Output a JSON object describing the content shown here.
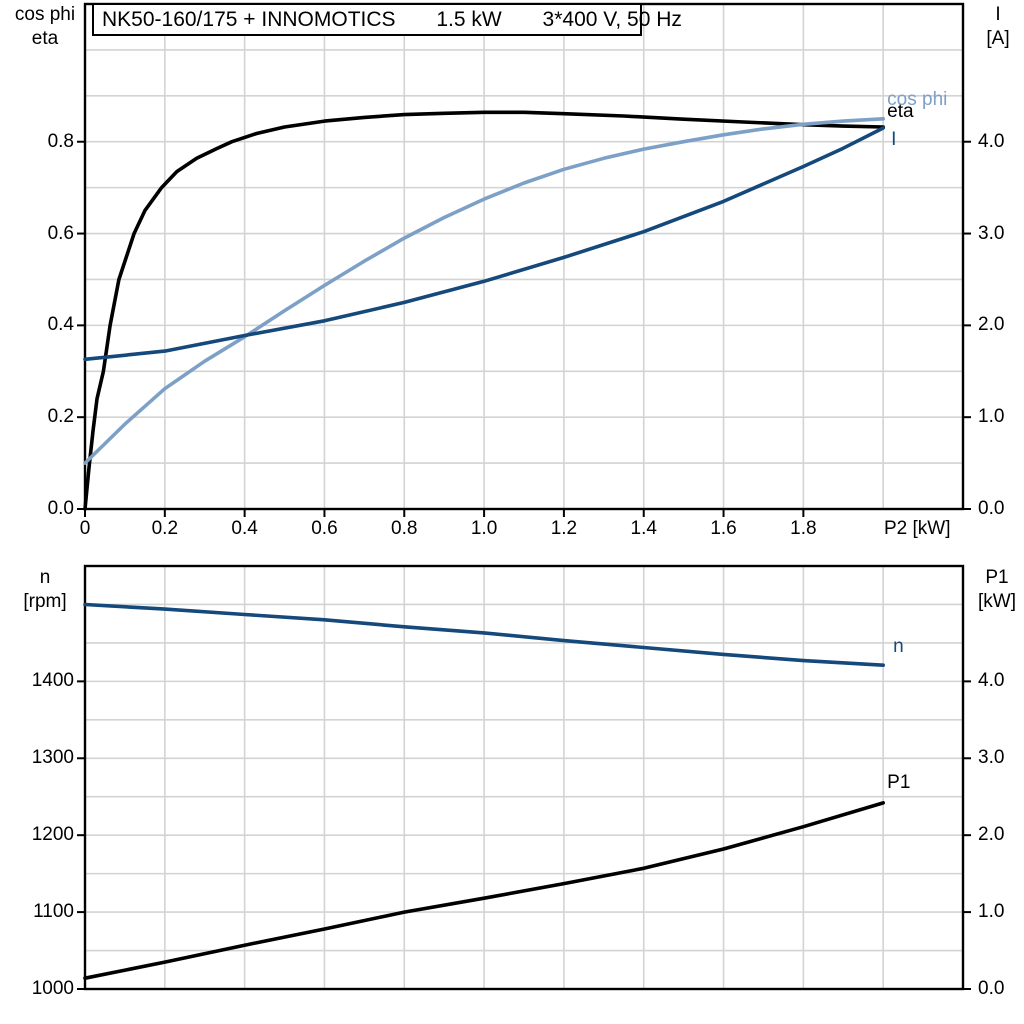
{
  "colors": {
    "black": "#000000",
    "light_blue": "#7da0c7",
    "dark_blue": "#15497b",
    "grid": "#d3d3d3"
  },
  "chart_data": [
    {
      "id": "motor-performance",
      "type": "line",
      "title": "NK50-160/175 + INNOMOTICS       1.5 kW       3*400 V, 50 Hz",
      "x_axis": {
        "label": "P2 [kW]",
        "min": 0,
        "max": 2.2,
        "grid_step": 0.2,
        "grid_max": 2.0,
        "ticks": [
          {
            "v": 0,
            "label": "0"
          },
          {
            "v": 0.2,
            "label": "0.2"
          },
          {
            "v": 0.4,
            "label": "0.4"
          },
          {
            "v": 0.6,
            "label": "0.6"
          },
          {
            "v": 0.8,
            "label": "0.8"
          },
          {
            "v": 1.0,
            "label": "1.0"
          },
          {
            "v": 1.2,
            "label": "1.2"
          },
          {
            "v": 1.4,
            "label": "1.4"
          },
          {
            "v": 1.6,
            "label": "1.6"
          },
          {
            "v": 1.8,
            "label": "1.8"
          }
        ]
      },
      "y_left": {
        "title_lines": [
          "cos phi",
          "eta"
        ],
        "min": 0,
        "max": 1.1,
        "grid_step": 0.1,
        "ticks": [
          {
            "v": 0.0,
            "label": "0.0"
          },
          {
            "v": 0.2,
            "label": "0.2"
          },
          {
            "v": 0.4,
            "label": "0.4"
          },
          {
            "v": 0.6,
            "label": "0.6"
          },
          {
            "v": 0.8,
            "label": "0.8"
          }
        ]
      },
      "y_right": {
        "title_lines": [
          "I",
          "[A]"
        ],
        "min": 0,
        "max": 5.5,
        "grid_step": 0.5,
        "ticks": [
          {
            "v": 0,
            "label": "0.0"
          },
          {
            "v": 1,
            "label": "1.0"
          },
          {
            "v": 2,
            "label": "2.0"
          },
          {
            "v": 3,
            "label": "3.0"
          },
          {
            "v": 4,
            "label": "4.0"
          }
        ]
      },
      "series": [
        {
          "name": "eta",
          "label": "eta",
          "color": "black",
          "axis": "left",
          "points": [
            [
              0,
              0
            ],
            [
              0.01,
              0.09
            ],
            [
              0.02,
              0.17
            ],
            [
              0.03,
              0.24
            ],
            [
              0.046,
              0.3
            ],
            [
              0.063,
              0.4
            ],
            [
              0.085,
              0.5
            ],
            [
              0.123,
              0.6
            ],
            [
              0.15,
              0.65
            ],
            [
              0.192,
              0.7
            ],
            [
              0.23,
              0.735
            ],
            [
              0.28,
              0.764
            ],
            [
              0.33,
              0.785
            ],
            [
              0.368,
              0.8
            ],
            [
              0.43,
              0.818
            ],
            [
              0.5,
              0.832
            ],
            [
              0.6,
              0.845
            ],
            [
              0.7,
              0.853
            ],
            [
              0.8,
              0.859
            ],
            [
              0.9,
              0.862
            ],
            [
              1.0,
              0.864
            ],
            [
              1.1,
              0.864
            ],
            [
              1.2,
              0.861
            ],
            [
              1.35,
              0.856
            ],
            [
              1.5,
              0.849
            ],
            [
              1.65,
              0.843
            ],
            [
              1.8,
              0.837
            ],
            [
              1.9,
              0.834
            ],
            [
              2.0,
              0.832
            ]
          ]
        },
        {
          "name": "cos_phi",
          "label": "cos phi",
          "color": "light_blue",
          "axis": "left",
          "points": [
            [
              0,
              0.1
            ],
            [
              0.1,
              0.185
            ],
            [
              0.2,
              0.262
            ],
            [
              0.3,
              0.322
            ],
            [
              0.4,
              0.375
            ],
            [
              0.5,
              0.432
            ],
            [
              0.6,
              0.487
            ],
            [
              0.7,
              0.54
            ],
            [
              0.8,
              0.59
            ],
            [
              0.9,
              0.635
            ],
            [
              1.0,
              0.675
            ],
            [
              1.1,
              0.71
            ],
            [
              1.2,
              0.74
            ],
            [
              1.3,
              0.764
            ],
            [
              1.4,
              0.784
            ],
            [
              1.5,
              0.8
            ],
            [
              1.6,
              0.815
            ],
            [
              1.7,
              0.828
            ],
            [
              1.8,
              0.838
            ],
            [
              1.9,
              0.845
            ],
            [
              2.0,
              0.85
            ]
          ]
        },
        {
          "name": "I",
          "label": "I",
          "color": "dark_blue",
          "axis": "right",
          "points": [
            [
              0,
              1.63
            ],
            [
              0.2,
              1.72
            ],
            [
              0.4,
              1.89
            ],
            [
              0.6,
              2.05
            ],
            [
              0.8,
              2.25
            ],
            [
              1.0,
              2.48
            ],
            [
              1.2,
              2.74
            ],
            [
              1.4,
              3.02
            ],
            [
              1.6,
              3.35
            ],
            [
              1.8,
              3.73
            ],
            [
              1.9,
              3.93
            ],
            [
              2.0,
              4.15
            ]
          ]
        }
      ]
    },
    {
      "id": "speed-power",
      "type": "line",
      "x_axis": {
        "label": "",
        "min": 0,
        "max": 2.2,
        "grid_step": 0.2,
        "grid_max": 2.0,
        "ticks": []
      },
      "y_left": {
        "title_lines": [
          "n",
          "[rpm]"
        ],
        "min": 1000,
        "max": 1550,
        "grid_step": 50,
        "ticks": [
          {
            "v": 1000,
            "label": "1000"
          },
          {
            "v": 1100,
            "label": "1100"
          },
          {
            "v": 1200,
            "label": "1200"
          },
          {
            "v": 1300,
            "label": "1300"
          },
          {
            "v": 1400,
            "label": "1400"
          }
        ]
      },
      "y_right": {
        "title_lines": [
          "P1",
          "[kW]"
        ],
        "min": 0,
        "max": 5.5,
        "grid_step": 0.5,
        "ticks": [
          {
            "v": 0,
            "label": "0.0"
          },
          {
            "v": 1,
            "label": "1.0"
          },
          {
            "v": 2,
            "label": "2.0"
          },
          {
            "v": 3,
            "label": "3.0"
          },
          {
            "v": 4,
            "label": "4.0"
          }
        ]
      },
      "series": [
        {
          "name": "n",
          "label": "n",
          "color": "dark_blue",
          "axis": "left",
          "points": [
            [
              0,
              1500
            ],
            [
              0.2,
              1494
            ],
            [
              0.4,
              1487
            ],
            [
              0.6,
              1480
            ],
            [
              0.8,
              1471
            ],
            [
              1.0,
              1463
            ],
            [
              1.2,
              1453
            ],
            [
              1.4,
              1444
            ],
            [
              1.6,
              1435
            ],
            [
              1.8,
              1427
            ],
            [
              2.0,
              1421
            ]
          ]
        },
        {
          "name": "P1",
          "label": "P1",
          "color": "black",
          "axis": "right",
          "points": [
            [
              0,
              0.14
            ],
            [
              0.2,
              0.35
            ],
            [
              0.4,
              0.57
            ],
            [
              0.6,
              0.78
            ],
            [
              0.8,
              1.0
            ],
            [
              1.0,
              1.18
            ],
            [
              1.2,
              1.37
            ],
            [
              1.4,
              1.57
            ],
            [
              1.6,
              1.82
            ],
            [
              1.8,
              2.11
            ],
            [
              2.0,
              2.42
            ]
          ]
        }
      ]
    }
  ]
}
